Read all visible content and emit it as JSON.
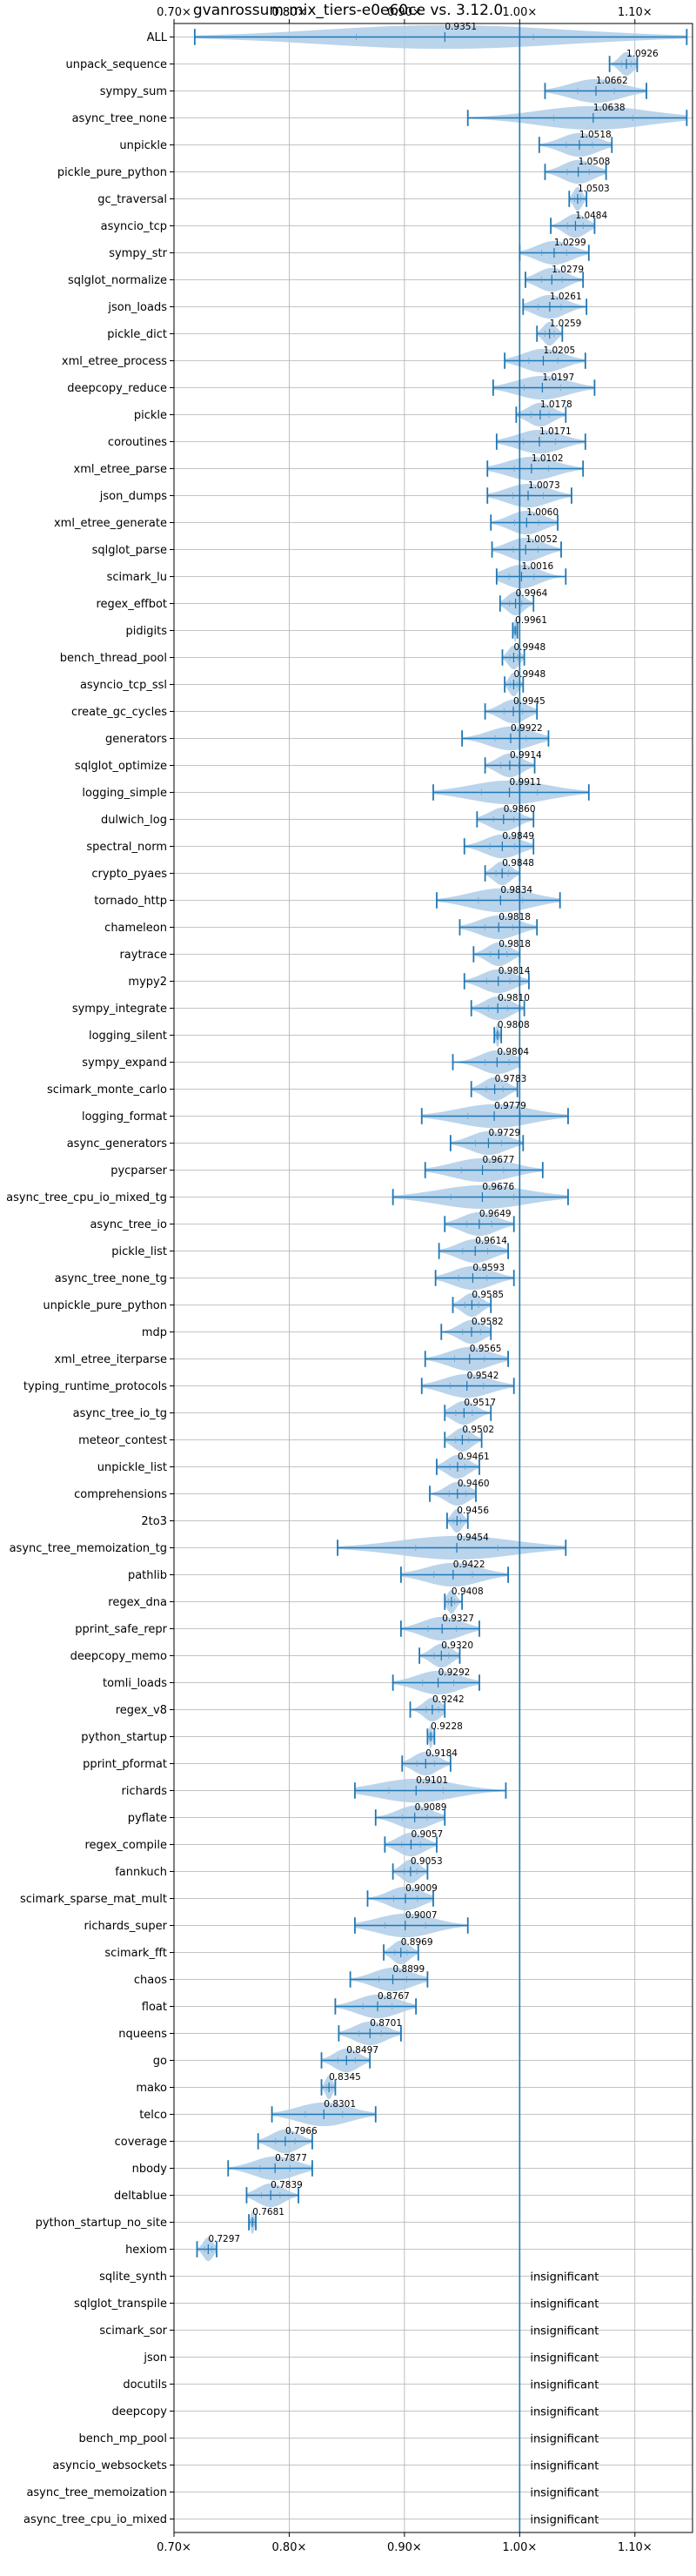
{
  "chart_data": {
    "type": "violin",
    "title": "gvanrossum-mix_tiers-e0e60ce vs. 3.12.0",
    "xlabel": "",
    "ylabel": "",
    "xlim": [
      0.7,
      1.15
    ],
    "xticks": [
      0.7,
      0.8,
      0.9,
      1.0,
      1.1
    ],
    "xtick_labels": [
      "0.70×",
      "0.80×",
      "0.90×",
      "1.00×",
      "1.10×"
    ],
    "reference_line": 1.0,
    "grid": true,
    "colors": {
      "violin": "#aecde8",
      "stat": "#1f77b4",
      "grid": "#b0b0b0",
      "reference": "#1f77b4"
    },
    "insignificant_label": "insignificant",
    "benchmarks": [
      {
        "name": "ALL",
        "mean": 0.9351,
        "min": 0.718,
        "max": 1.145,
        "label": "0.9351"
      },
      {
        "name": "unpack_sequence",
        "mean": 1.0926,
        "min": 1.078,
        "max": 1.102,
        "label": "1.0926"
      },
      {
        "name": "sympy_sum",
        "mean": 1.0662,
        "min": 1.022,
        "max": 1.11,
        "label": "1.0662"
      },
      {
        "name": "async_tree_none",
        "mean": 1.0638,
        "min": 0.955,
        "max": 1.145,
        "label": "1.0638"
      },
      {
        "name": "unpickle",
        "mean": 1.0518,
        "min": 1.017,
        "max": 1.08,
        "label": "1.0518"
      },
      {
        "name": "pickle_pure_python",
        "mean": 1.0508,
        "min": 1.022,
        "max": 1.075,
        "label": "1.0508"
      },
      {
        "name": "gc_traversal",
        "mean": 1.0503,
        "min": 1.043,
        "max": 1.058,
        "label": "1.0503"
      },
      {
        "name": "asyncio_tcp",
        "mean": 1.0484,
        "min": 1.027,
        "max": 1.065,
        "label": "1.0484"
      },
      {
        "name": "sympy_str",
        "mean": 1.0299,
        "min": 1.0,
        "max": 1.06,
        "label": "1.0299"
      },
      {
        "name": "sqlglot_normalize",
        "mean": 1.0279,
        "min": 1.005,
        "max": 1.055,
        "label": "1.0279"
      },
      {
        "name": "json_loads",
        "mean": 1.0261,
        "min": 1.003,
        "max": 1.058,
        "label": "1.0261"
      },
      {
        "name": "pickle_dict",
        "mean": 1.0259,
        "min": 1.015,
        "max": 1.037,
        "label": "1.0259"
      },
      {
        "name": "xml_etree_process",
        "mean": 1.0205,
        "min": 0.987,
        "max": 1.057,
        "label": "1.0205"
      },
      {
        "name": "deepcopy_reduce",
        "mean": 1.0197,
        "min": 0.977,
        "max": 1.065,
        "label": "1.0197"
      },
      {
        "name": "pickle",
        "mean": 1.0178,
        "min": 0.997,
        "max": 1.04,
        "label": "1.0178"
      },
      {
        "name": "coroutines",
        "mean": 1.0171,
        "min": 0.98,
        "max": 1.057,
        "label": "1.0171"
      },
      {
        "name": "xml_etree_parse",
        "mean": 1.0102,
        "min": 0.972,
        "max": 1.055,
        "label": "1.0102"
      },
      {
        "name": "json_dumps",
        "mean": 1.0073,
        "min": 0.972,
        "max": 1.045,
        "label": "1.0073"
      },
      {
        "name": "xml_etree_generate",
        "mean": 1.006,
        "min": 0.975,
        "max": 1.033,
        "label": "1.0060"
      },
      {
        "name": "sqlglot_parse",
        "mean": 1.0052,
        "min": 0.976,
        "max": 1.036,
        "label": "1.0052"
      },
      {
        "name": "scimark_lu",
        "mean": 1.0016,
        "min": 0.98,
        "max": 1.04,
        "label": "1.0016"
      },
      {
        "name": "regex_effbot",
        "mean": 0.9964,
        "min": 0.983,
        "max": 1.012,
        "label": "0.9964"
      },
      {
        "name": "pidigits",
        "mean": 0.9961,
        "min": 0.994,
        "max": 0.998,
        "label": "0.9961"
      },
      {
        "name": "bench_thread_pool",
        "mean": 0.9948,
        "min": 0.985,
        "max": 1.004,
        "label": "0.9948"
      },
      {
        "name": "asyncio_tcp_ssl",
        "mean": 0.9948,
        "min": 0.987,
        "max": 1.003,
        "label": "0.9948"
      },
      {
        "name": "create_gc_cycles",
        "mean": 0.9945,
        "min": 0.97,
        "max": 1.015,
        "label": "0.9945"
      },
      {
        "name": "generators",
        "mean": 0.9922,
        "min": 0.95,
        "max": 1.025,
        "label": "0.9922"
      },
      {
        "name": "sqlglot_optimize",
        "mean": 0.9914,
        "min": 0.97,
        "max": 1.013,
        "label": "0.9914"
      },
      {
        "name": "logging_simple",
        "mean": 0.9911,
        "min": 0.925,
        "max": 1.06,
        "label": "0.9911"
      },
      {
        "name": "dulwich_log",
        "mean": 0.986,
        "min": 0.963,
        "max": 1.012,
        "label": "0.9860"
      },
      {
        "name": "spectral_norm",
        "mean": 0.9849,
        "min": 0.952,
        "max": 1.012,
        "label": "0.9849"
      },
      {
        "name": "crypto_pyaes",
        "mean": 0.9848,
        "min": 0.97,
        "max": 1.0,
        "label": "0.9848"
      },
      {
        "name": "tornado_http",
        "mean": 0.9834,
        "min": 0.928,
        "max": 1.035,
        "label": "0.9834"
      },
      {
        "name": "chameleon",
        "mean": 0.9818,
        "min": 0.948,
        "max": 1.015,
        "label": "0.9818"
      },
      {
        "name": "raytrace",
        "mean": 0.9818,
        "min": 0.96,
        "max": 1.0,
        "label": "0.9818"
      },
      {
        "name": "mypy2",
        "mean": 0.9814,
        "min": 0.952,
        "max": 1.008,
        "label": "0.9814"
      },
      {
        "name": "sympy_integrate",
        "mean": 0.981,
        "min": 0.958,
        "max": 1.004,
        "label": "0.9810"
      },
      {
        "name": "logging_silent",
        "mean": 0.9808,
        "min": 0.978,
        "max": 0.984,
        "label": "0.9808"
      },
      {
        "name": "sympy_expand",
        "mean": 0.9804,
        "min": 0.942,
        "max": 1.0,
        "label": "0.9804"
      },
      {
        "name": "scimark_monte_carlo",
        "mean": 0.9783,
        "min": 0.958,
        "max": 0.998,
        "label": "0.9783"
      },
      {
        "name": "logging_format",
        "mean": 0.9779,
        "min": 0.915,
        "max": 1.042,
        "label": "0.9779"
      },
      {
        "name": "async_generators",
        "mean": 0.9729,
        "min": 0.94,
        "max": 1.003,
        "label": "0.9729"
      },
      {
        "name": "pycparser",
        "mean": 0.9677,
        "min": 0.918,
        "max": 1.02,
        "label": "0.9677"
      },
      {
        "name": "async_tree_cpu_io_mixed_tg",
        "mean": 0.9676,
        "min": 0.89,
        "max": 1.042,
        "label": "0.9676"
      },
      {
        "name": "async_tree_io",
        "mean": 0.9649,
        "min": 0.935,
        "max": 0.995,
        "label": "0.9649"
      },
      {
        "name": "pickle_list",
        "mean": 0.9614,
        "min": 0.93,
        "max": 0.99,
        "label": "0.9614"
      },
      {
        "name": "async_tree_none_tg",
        "mean": 0.9593,
        "min": 0.927,
        "max": 0.995,
        "label": "0.9593"
      },
      {
        "name": "unpickle_pure_python",
        "mean": 0.9585,
        "min": 0.942,
        "max": 0.975,
        "label": "0.9585"
      },
      {
        "name": "mdp",
        "mean": 0.9582,
        "min": 0.932,
        "max": 0.975,
        "label": "0.9582"
      },
      {
        "name": "xml_etree_iterparse",
        "mean": 0.9565,
        "min": 0.918,
        "max": 0.99,
        "label": "0.9565"
      },
      {
        "name": "typing_runtime_protocols",
        "mean": 0.9542,
        "min": 0.915,
        "max": 0.995,
        "label": "0.9542"
      },
      {
        "name": "async_tree_io_tg",
        "mean": 0.9517,
        "min": 0.935,
        "max": 0.975,
        "label": "0.9517"
      },
      {
        "name": "meteor_contest",
        "mean": 0.9502,
        "min": 0.935,
        "max": 0.967,
        "label": "0.9502"
      },
      {
        "name": "unpickle_list",
        "mean": 0.9461,
        "min": 0.928,
        "max": 0.965,
        "label": "0.9461"
      },
      {
        "name": "comprehensions",
        "mean": 0.946,
        "min": 0.922,
        "max": 0.962,
        "label": "0.9460"
      },
      {
        "name": "2to3",
        "mean": 0.9456,
        "min": 0.937,
        "max": 0.955,
        "label": "0.9456"
      },
      {
        "name": "async_tree_memoization_tg",
        "mean": 0.9454,
        "min": 0.842,
        "max": 1.04,
        "label": "0.9454"
      },
      {
        "name": "pathlib",
        "mean": 0.9422,
        "min": 0.897,
        "max": 0.99,
        "label": "0.9422"
      },
      {
        "name": "regex_dna",
        "mean": 0.9408,
        "min": 0.935,
        "max": 0.95,
        "label": "0.9408"
      },
      {
        "name": "pprint_safe_repr",
        "mean": 0.9327,
        "min": 0.897,
        "max": 0.965,
        "label": "0.9327"
      },
      {
        "name": "deepcopy_memo",
        "mean": 0.932,
        "min": 0.913,
        "max": 0.948,
        "label": "0.9320"
      },
      {
        "name": "tomli_loads",
        "mean": 0.9292,
        "min": 0.89,
        "max": 0.965,
        "label": "0.9292"
      },
      {
        "name": "regex_v8",
        "mean": 0.9242,
        "min": 0.905,
        "max": 0.935,
        "label": "0.9242"
      },
      {
        "name": "python_startup",
        "mean": 0.9228,
        "min": 0.92,
        "max": 0.926,
        "label": "0.9228"
      },
      {
        "name": "pprint_pformat",
        "mean": 0.9184,
        "min": 0.898,
        "max": 0.94,
        "label": "0.9184"
      },
      {
        "name": "richards",
        "mean": 0.9101,
        "min": 0.857,
        "max": 0.988,
        "label": "0.9101"
      },
      {
        "name": "pyflate",
        "mean": 0.9089,
        "min": 0.875,
        "max": 0.935,
        "label": "0.9089"
      },
      {
        "name": "regex_compile",
        "mean": 0.9057,
        "min": 0.883,
        "max": 0.928,
        "label": "0.9057"
      },
      {
        "name": "fannkuch",
        "mean": 0.9053,
        "min": 0.89,
        "max": 0.92,
        "label": "0.9053"
      },
      {
        "name": "scimark_sparse_mat_mult",
        "mean": 0.9009,
        "min": 0.868,
        "max": 0.925,
        "label": "0.9009"
      },
      {
        "name": "richards_super",
        "mean": 0.9007,
        "min": 0.857,
        "max": 0.955,
        "label": "0.9007"
      },
      {
        "name": "scimark_fft",
        "mean": 0.8969,
        "min": 0.882,
        "max": 0.912,
        "label": "0.8969"
      },
      {
        "name": "chaos",
        "mean": 0.8899,
        "min": 0.853,
        "max": 0.92,
        "label": "0.8899"
      },
      {
        "name": "float",
        "mean": 0.8767,
        "min": 0.84,
        "max": 0.91,
        "label": "0.8767"
      },
      {
        "name": "nqueens",
        "mean": 0.8701,
        "min": 0.843,
        "max": 0.897,
        "label": "0.8701"
      },
      {
        "name": "go",
        "mean": 0.8497,
        "min": 0.828,
        "max": 0.87,
        "label": "0.8497"
      },
      {
        "name": "mako",
        "mean": 0.8345,
        "min": 0.828,
        "max": 0.84,
        "label": "0.8345"
      },
      {
        "name": "telco",
        "mean": 0.8301,
        "min": 0.785,
        "max": 0.875,
        "label": "0.8301"
      },
      {
        "name": "coverage",
        "mean": 0.7966,
        "min": 0.773,
        "max": 0.82,
        "label": "0.7966"
      },
      {
        "name": "nbody",
        "mean": 0.7877,
        "min": 0.747,
        "max": 0.82,
        "label": "0.7877"
      },
      {
        "name": "deltablue",
        "mean": 0.7839,
        "min": 0.763,
        "max": 0.808,
        "label": "0.7839"
      },
      {
        "name": "python_startup_no_site",
        "mean": 0.7681,
        "min": 0.765,
        "max": 0.771,
        "label": "0.7681"
      },
      {
        "name": "hexiom",
        "mean": 0.7297,
        "min": 0.72,
        "max": 0.737,
        "label": "0.7297"
      },
      {
        "name": "sqlite_synth",
        "insignificant": true
      },
      {
        "name": "sqlglot_transpile",
        "insignificant": true
      },
      {
        "name": "scimark_sor",
        "insignificant": true
      },
      {
        "name": "json",
        "insignificant": true
      },
      {
        "name": "docutils",
        "insignificant": true
      },
      {
        "name": "deepcopy",
        "insignificant": true
      },
      {
        "name": "bench_mp_pool",
        "insignificant": true
      },
      {
        "name": "asyncio_websockets",
        "insignificant": true
      },
      {
        "name": "async_tree_memoization",
        "insignificant": true
      },
      {
        "name": "async_tree_cpu_io_mixed",
        "insignificant": true
      }
    ]
  }
}
